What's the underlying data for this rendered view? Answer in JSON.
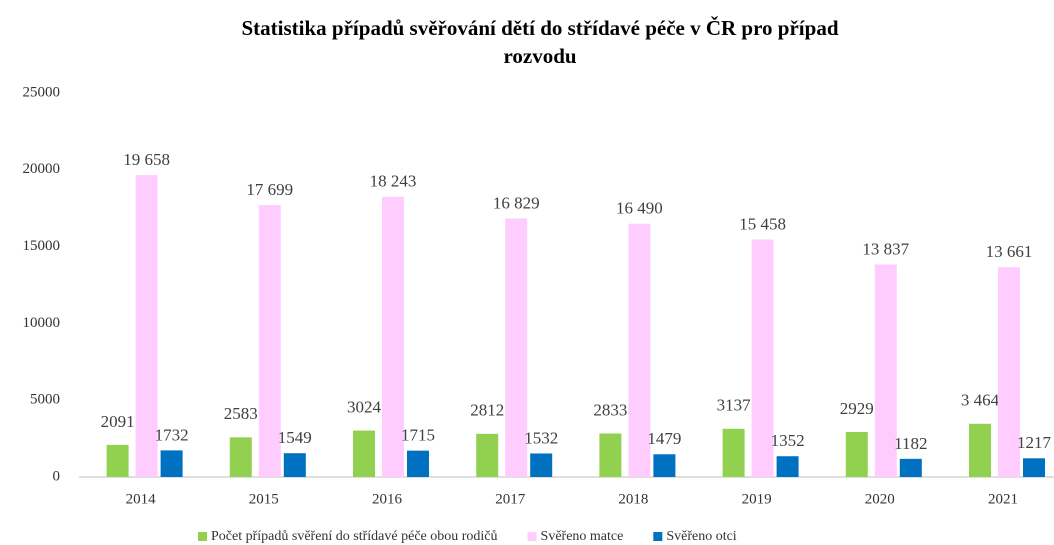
{
  "chart_data": {
    "type": "bar",
    "title": "Statistika případů svěřování dětí do střídavé péče v ČR pro případ rozvodu",
    "categories": [
      "2014",
      "2015",
      "2016",
      "2017",
      "2018",
      "2019",
      "2020",
      "2021"
    ],
    "series": [
      {
        "name": "Počet případů svěření do střídavé péče obou rodičů",
        "color": "#92d050",
        "values": [
          2091,
          2583,
          3024,
          2812,
          2833,
          3137,
          2929,
          3464
        ],
        "value_labels": [
          "2091",
          "2583",
          "3024",
          "2812",
          "2833",
          "3137",
          "2929",
          "3 464"
        ]
      },
      {
        "name": "Svěřeno matce",
        "color": "#ffccff",
        "values": [
          19658,
          17699,
          18243,
          16829,
          16490,
          15458,
          13837,
          13661
        ],
        "value_labels": [
          "19 658",
          "17 699",
          "18 243",
          "16 829",
          "16 490",
          "15 458",
          "13 837",
          "13 661"
        ]
      },
      {
        "name": "Svěřeno otci",
        "color": "#0070c0",
        "values": [
          1732,
          1549,
          1715,
          1532,
          1479,
          1352,
          1182,
          1217
        ],
        "value_labels": [
          "1732",
          "1549",
          "1715",
          "1532",
          "1479",
          "1352",
          "1182",
          "1217"
        ]
      }
    ],
    "ylim": [
      0,
      25000
    ],
    "yticks": [
      0,
      5000,
      10000,
      15000,
      20000,
      25000
    ],
    "grid": false,
    "legend": "bottom"
  }
}
